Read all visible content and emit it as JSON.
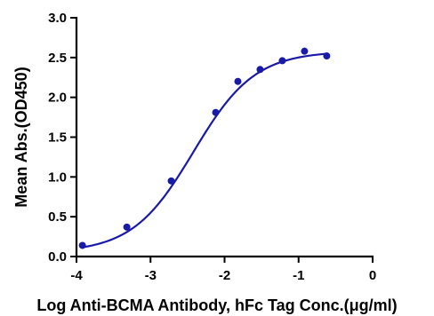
{
  "chart_data": {
    "type": "scatter",
    "title": "",
    "xlabel": "Log Anti-BCMA Antibody, hFc Tag Conc.(μg/ml)",
    "ylabel": "Mean Abs.(OD450)",
    "xlim": [
      -4,
      0
    ],
    "ylim": [
      0,
      3.0
    ],
    "x_ticks": [
      -4,
      -3,
      -2,
      -1,
      0
    ],
    "x_tick_labels": [
      "-4",
      "-3",
      "-2",
      "-1",
      "0"
    ],
    "y_ticks": [
      0,
      0.5,
      1.0,
      1.5,
      2.0,
      2.5,
      3.0
    ],
    "y_tick_labels": [
      "0.0",
      "0.5",
      "1.0",
      "1.5",
      "2.0",
      "2.5",
      "3.0"
    ],
    "grid": false,
    "legend": "none",
    "series": [
      {
        "points": [
          {
            "x": -3.92,
            "y": 0.14
          },
          {
            "x": -3.32,
            "y": 0.37
          },
          {
            "x": -2.72,
            "y": 0.95
          },
          {
            "x": -2.12,
            "y": 1.81
          },
          {
            "x": -1.82,
            "y": 2.2
          },
          {
            "x": -1.52,
            "y": 2.35
          },
          {
            "x": -1.22,
            "y": 2.46
          },
          {
            "x": -0.92,
            "y": 2.58
          },
          {
            "x": -0.62,
            "y": 2.52
          }
        ],
        "fit": {
          "model": "4PL",
          "bottom": 0.05,
          "top": 2.58,
          "logEC50": -2.42,
          "hill": 1.05,
          "x_range": [
            -3.92,
            -0.62
          ]
        }
      }
    ],
    "colors": {
      "series": "#1a1aa8",
      "axis": "#000000"
    }
  }
}
